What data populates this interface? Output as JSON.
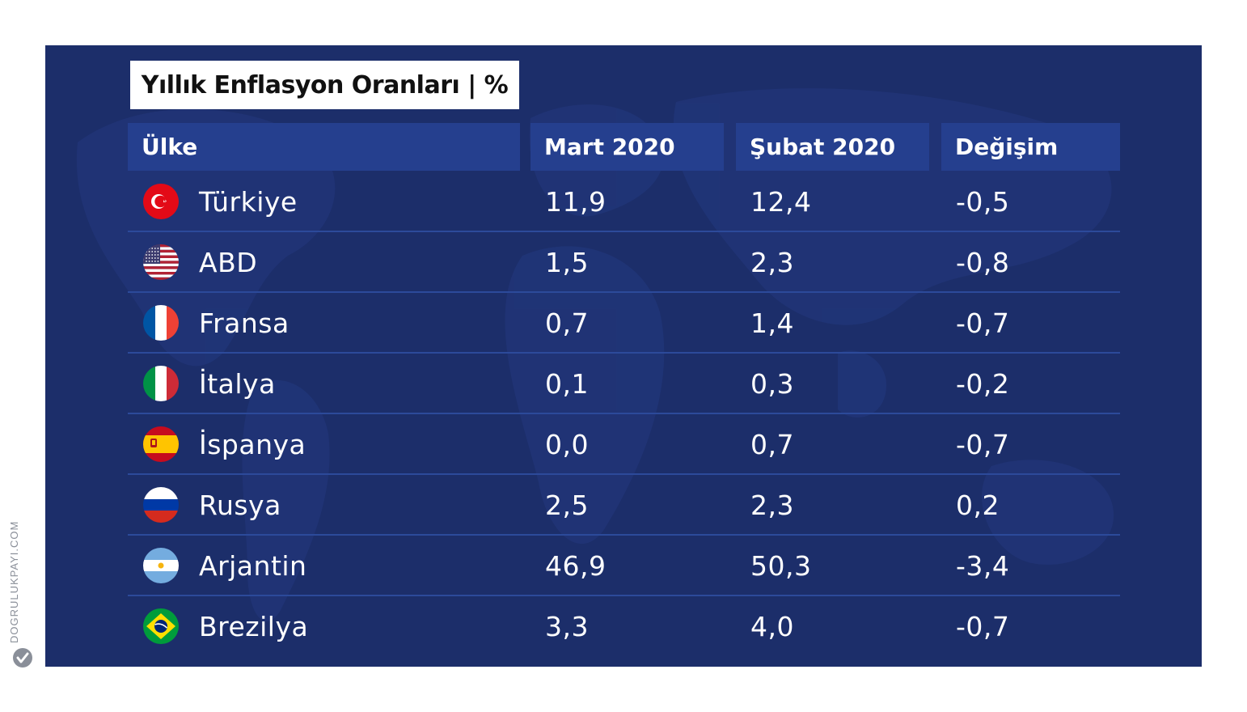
{
  "watermark": {
    "text": "DOGRULUKPAYI.COM",
    "logo_icon": "checkmark-logo-icon"
  },
  "colors": {
    "panel": "#1c2e6a",
    "header": "#253f8e",
    "row_line": "#2c4a9a",
    "title_bg": "#ffffff"
  },
  "chart_data": {
    "type": "table",
    "title": "Yıllık Enflasyon Oranları | %",
    "columns": [
      "Ülke",
      "Mart 2020",
      "Şubat 2020",
      "Değişim"
    ],
    "rows": [
      {
        "country": "Türkiye",
        "flag": "turkey-flag-icon",
        "mart": "11,9",
        "subat": "12,4",
        "degisim": "-0,5"
      },
      {
        "country": "ABD",
        "flag": "usa-flag-icon",
        "mart": "1,5",
        "subat": "2,3",
        "degisim": "-0,8"
      },
      {
        "country": "Fransa",
        "flag": "france-flag-icon",
        "mart": "0,7",
        "subat": "1,4",
        "degisim": "-0,7"
      },
      {
        "country": "İtalya",
        "flag": "italy-flag-icon",
        "mart": "0,1",
        "subat": "0,3",
        "degisim": "-0,2"
      },
      {
        "country": "İspanya",
        "flag": "spain-flag-icon",
        "mart": "0,0",
        "subat": "0,7",
        "degisim": "-0,7"
      },
      {
        "country": "Rusya",
        "flag": "russia-flag-icon",
        "mart": "2,5",
        "subat": "2,3",
        "degisim": "0,2"
      },
      {
        "country": "Arjantin",
        "flag": "argentina-flag-icon",
        "mart": "46,9",
        "subat": "50,3",
        "degisim": "-3,4"
      },
      {
        "country": "Brezilya",
        "flag": "brazil-flag-icon",
        "mart": "3,3",
        "subat": "4,0",
        "degisim": "-0,7"
      }
    ]
  }
}
